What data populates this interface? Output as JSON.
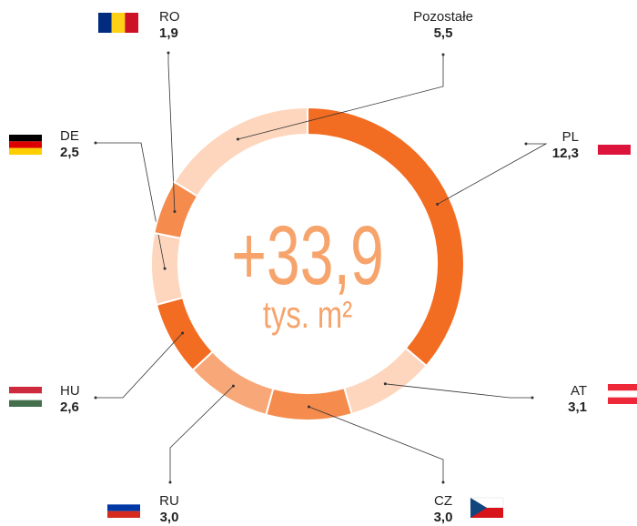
{
  "chart_data": {
    "type": "donut",
    "center_text": "+33,9",
    "center_subtext": "tys. m²",
    "categories": [
      "PL",
      "AT",
      "CZ",
      "RU",
      "HU",
      "DE",
      "RO",
      "Pozostałe"
    ],
    "values": [
      12.3,
      3.1,
      3.0,
      3.0,
      2.6,
      2.5,
      1.9,
      5.5
    ],
    "value_labels": [
      "12,3",
      "3,1",
      "3,0",
      "3,0",
      "2,6",
      "2,5",
      "1,9",
      "5,5"
    ],
    "colors": [
      "#f26c21",
      "#fdd6bd",
      "#f58b4c",
      "#f8a878",
      "#f26c21",
      "#fdd6bd",
      "#f58b4c",
      "#fdd6bd"
    ]
  }
}
